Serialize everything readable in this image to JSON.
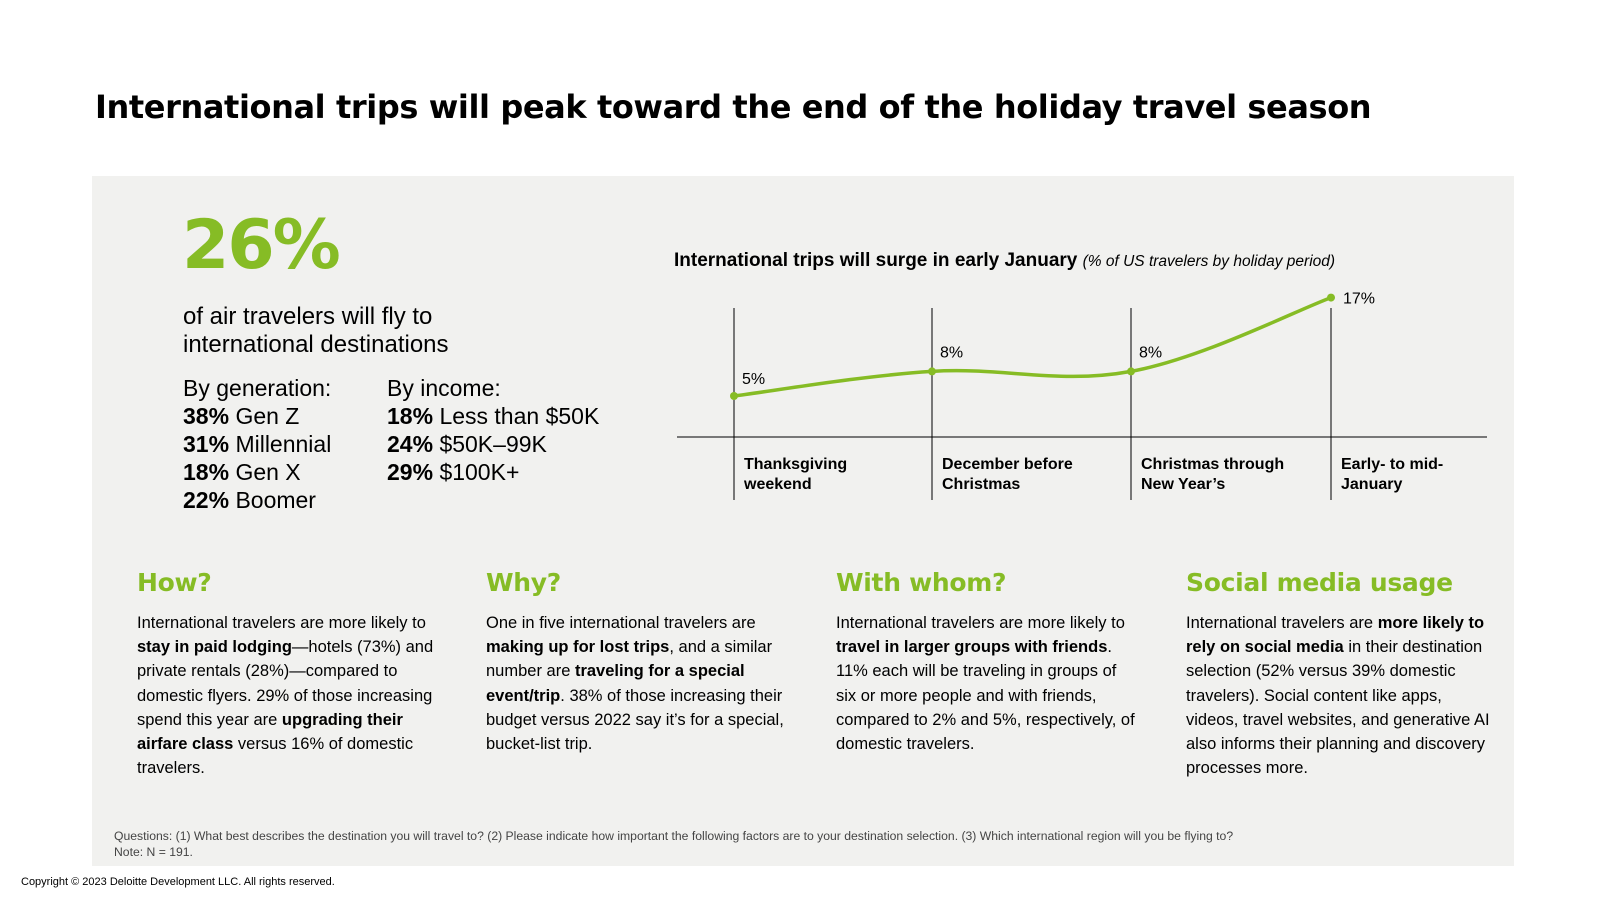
{
  "title": "International trips will peak toward the end of the holiday travel season",
  "headline": {
    "stat": "26%",
    "description": "of air travelers will fly to international destinations"
  },
  "generation": {
    "heading": "By generation:",
    "items": [
      {
        "pct": "38%",
        "label": "Gen Z"
      },
      {
        "pct": "31%",
        "label": "Millennial"
      },
      {
        "pct": "18%",
        "label": "Gen X"
      },
      {
        "pct": "22%",
        "label": "Boomer"
      }
    ]
  },
  "income": {
    "heading": "By income:",
    "items": [
      {
        "pct": "18%",
        "label": "Less than $50K"
      },
      {
        "pct": "24%",
        "label": "$50K–99K"
      },
      {
        "pct": "29%",
        "label": "$100K+"
      }
    ]
  },
  "chart_data": {
    "type": "line",
    "title": "International trips will surge in early January",
    "subtitle": "(% of US travelers by holiday period)",
    "categories": [
      [
        "Thanksgiving",
        "weekend"
      ],
      [
        "December before",
        "Christmas"
      ],
      [
        "Christmas through",
        "New Year’s"
      ],
      [
        "Early- to mid-",
        "January"
      ]
    ],
    "values": [
      5,
      8,
      8,
      17
    ],
    "value_labels": [
      "5%",
      "8%",
      "8%",
      "17%"
    ],
    "ylim": [
      0,
      20
    ],
    "line_color": "#86bc25",
    "grid": false
  },
  "sections": [
    {
      "heading": "How?",
      "body": [
        {
          "t": "International travelers are more likely to "
        },
        {
          "t": "stay in paid lodging",
          "b": true
        },
        {
          "t": "—hotels (73%) and private rentals (28%)—compared to domestic flyers. 29% of those increasing spend this year are "
        },
        {
          "t": "upgrading their airfare class",
          "b": true
        },
        {
          "t": " versus 16% of domestic travelers."
        }
      ]
    },
    {
      "heading": "Why?",
      "body": [
        {
          "t": "One in five international travelers are "
        },
        {
          "t": "making up for lost trips",
          "b": true
        },
        {
          "t": ", and a similar number are "
        },
        {
          "t": "traveling for a special event/trip",
          "b": true
        },
        {
          "t": ". 38% of those increasing their budget versus 2022 say it’s for a special, bucket-list trip."
        }
      ]
    },
    {
      "heading": "With whom?",
      "body": [
        {
          "t": "International travelers are more likely to "
        },
        {
          "t": "travel in larger groups with friends",
          "b": true
        },
        {
          "t": ". 11% each will be traveling in groups of six or more people and with friends, compared to 2% and 5%, respectively, of domestic travelers."
        }
      ]
    },
    {
      "heading": "Social media usage",
      "body": [
        {
          "t": "International travelers are "
        },
        {
          "t": "more likely to rely on social media",
          "b": true
        },
        {
          "t": " in their destination selection (52% versus 39% domestic travelers). Social content like apps, videos, travel websites, and generative AI also informs their planning and discovery processes more."
        }
      ]
    }
  ],
  "footnote": {
    "questions": "Questions: (1) What best describes the destination you will travel to? (2) Please indicate how important the following factors are to your destination selection. (3) Which international region will you be flying to?",
    "note": "Note: N = 191."
  },
  "copyright": "Copyright © 2023 Deloitte Development LLC. All rights reserved.",
  "colors": {
    "accent": "#86bc25",
    "panel": "#f1f1ef"
  }
}
